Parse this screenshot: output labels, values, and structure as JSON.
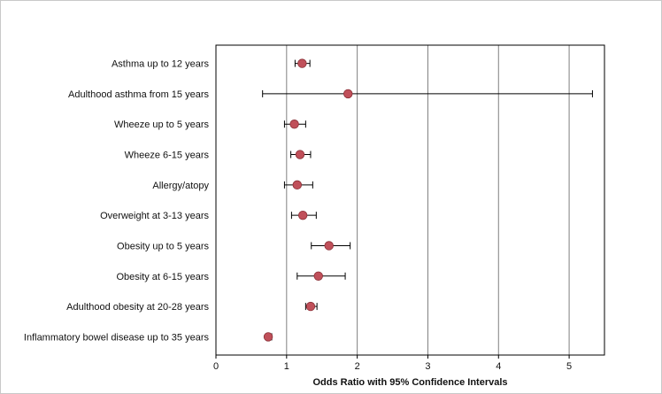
{
  "chart_data": {
    "type": "scatter",
    "subtype": "forest-plot",
    "title": "",
    "xlabel": "Odds Ratio with 95% Confidence Intervals",
    "ylabel": "",
    "xlim": [
      0,
      5.5
    ],
    "xticks": [
      0,
      1,
      2,
      3,
      4,
      5
    ],
    "grid": "vertical gridlines",
    "legend": "none",
    "colors": {
      "marker": "#c0505a",
      "marker_edge": "#8a2f36",
      "errorbar": "#000000",
      "grid": "#7f7f7f"
    },
    "categories": [
      "Asthma up to 12 years",
      "Adulthood asthma from 15 years",
      "Wheeze up to 5 years",
      "Wheeze 6-15 years",
      "Allergy/atopy",
      "Overweight at 3-13 years",
      "Obesity up to 5 years",
      "Obesity at 6-15 years",
      "Adulthood obesity at 20-28 years",
      "Inflammatory bowel disease up to 35 years"
    ],
    "points": [
      {
        "label": "Asthma up to 12 years",
        "or": 1.22,
        "lower": 1.12,
        "upper": 1.33
      },
      {
        "label": "Adulthood asthma from 15 years",
        "or": 1.87,
        "lower": 0.66,
        "upper": 5.33
      },
      {
        "label": "Wheeze up to 5 years",
        "or": 1.11,
        "lower": 0.97,
        "upper": 1.27
      },
      {
        "label": "Wheeze 6-15 years",
        "or": 1.19,
        "lower": 1.06,
        "upper": 1.34
      },
      {
        "label": "Allergy/atopy",
        "or": 1.15,
        "lower": 0.97,
        "upper": 1.37
      },
      {
        "label": "Overweight at 3-13 years",
        "or": 1.23,
        "lower": 1.07,
        "upper": 1.42
      },
      {
        "label": "Obesity up to 5 years",
        "or": 1.6,
        "lower": 1.35,
        "upper": 1.9
      },
      {
        "label": "Obesity at 6-15 years",
        "or": 1.45,
        "lower": 1.15,
        "upper": 1.83
      },
      {
        "label": "Adulthood obesity at 20-28 years",
        "or": 1.34,
        "lower": 1.27,
        "upper": 1.43
      },
      {
        "label": "Inflammatory bowel disease up to 35 years",
        "or": 0.74,
        "lower": 0.71,
        "upper": 0.79
      }
    ]
  }
}
